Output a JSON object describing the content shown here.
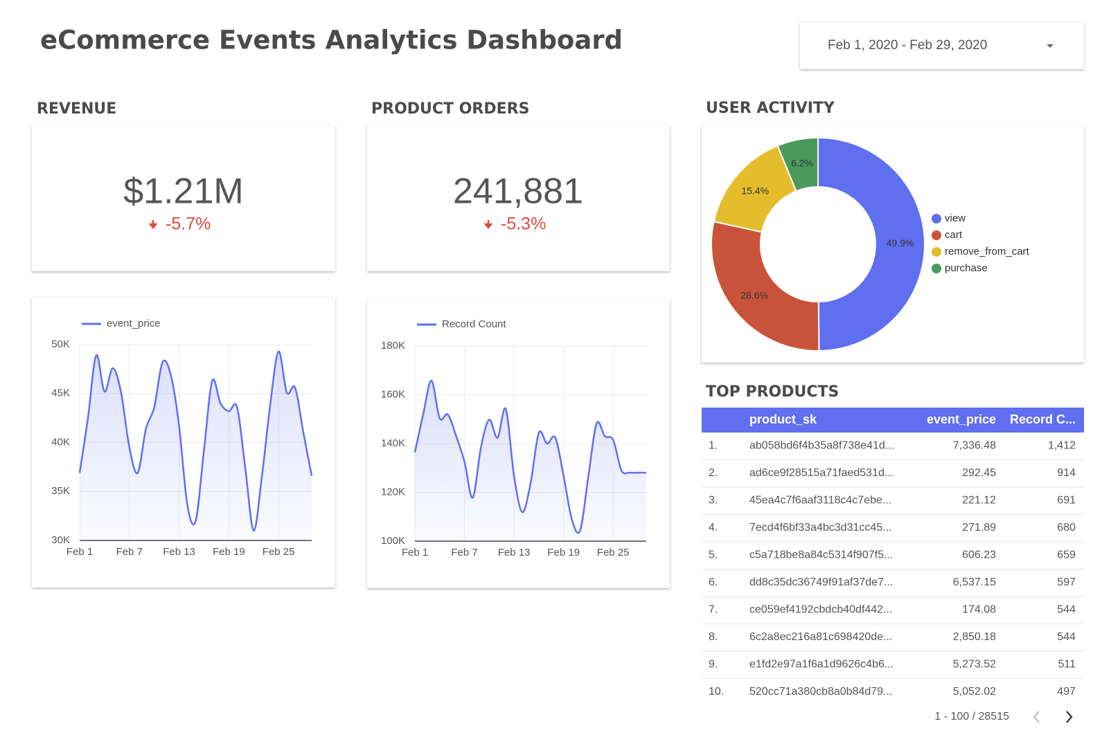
{
  "header": {
    "title": "eCommerce Events Analytics Dashboard",
    "date_range": "Feb 1, 2020 - Feb 29, 2020"
  },
  "scorecards": [
    {
      "title": "REVENUE",
      "value": "$1.21M",
      "change": "-5.7%"
    },
    {
      "title": "PRODUCT ORDERS",
      "value": "241,881",
      "change": "-5.3%"
    }
  ],
  "chart_data": [
    {
      "type": "line",
      "categories": [
        "Feb 1",
        null,
        null,
        null,
        null,
        null,
        "Feb 7",
        null,
        null,
        null,
        null,
        null,
        "Feb 13",
        null,
        null,
        null,
        null,
        null,
        "Feb 19",
        null,
        null,
        null,
        null,
        null,
        "Feb 25",
        null,
        null,
        null,
        null
      ],
      "series": [
        {
          "name": "event_price",
          "color": "#5f6ff0",
          "values": [
            36900,
            42500,
            48900,
            45200,
            47600,
            45100,
            39500,
            36900,
            41400,
            43600,
            48200,
            46900,
            41700,
            33600,
            32000,
            39200,
            46300,
            44000,
            43200,
            43600,
            37300,
            31000,
            36600,
            43900,
            49300,
            45100,
            45600,
            41000,
            36600
          ]
        }
      ],
      "ylim": [
        30000,
        50000
      ],
      "yticks": [
        {
          "value": 30000,
          "label": "30K"
        },
        {
          "value": 35000,
          "label": "35K"
        },
        {
          "value": 40000,
          "label": "40K"
        },
        {
          "value": 45000,
          "label": "45K"
        },
        {
          "value": 50000,
          "label": "50K"
        }
      ],
      "grid": true
    },
    {
      "type": "line",
      "categories": [
        "Feb 1",
        null,
        null,
        null,
        null,
        null,
        "Feb 7",
        null,
        null,
        null,
        null,
        null,
        "Feb 13",
        null,
        null,
        null,
        null,
        null,
        "Feb 19",
        null,
        null,
        null,
        null,
        null,
        "Feb 25",
        null,
        null,
        null,
        null
      ],
      "series": [
        {
          "name": "Record Count",
          "color": "#5f6ff0",
          "values": [
            136400,
            151900,
            165800,
            150400,
            151900,
            143000,
            132600,
            117800,
            138500,
            149800,
            142400,
            154200,
            126700,
            111900,
            123700,
            144400,
            140000,
            142400,
            126700,
            108900,
            104400,
            126700,
            148300,
            143000,
            141500,
            129000,
            128100,
            128100,
            128100
          ]
        }
      ],
      "ylim": [
        100000,
        180000
      ],
      "yticks": [
        {
          "value": 100000,
          "label": "100K"
        },
        {
          "value": 120000,
          "label": "120K"
        },
        {
          "value": 140000,
          "label": "140K"
        },
        {
          "value": 160000,
          "label": "160K"
        },
        {
          "value": 180000,
          "label": "180K"
        }
      ],
      "grid": true
    },
    {
      "type": "pie",
      "title": "USER ACTIVITY",
      "donut": true,
      "legend": "right",
      "categories": [
        "view",
        "cart",
        "remove_from_cart",
        "purchase"
      ],
      "values": [
        49.9,
        28.6,
        15.4,
        6.2
      ],
      "value_labels": [
        "49.9%",
        "28.6%",
        "15.4%",
        "6.2%"
      ],
      "colors": [
        "#5f6ff0",
        "#c9533a",
        "#e3bd2c",
        "#4a9a5a"
      ]
    }
  ],
  "top_products": {
    "title": "TOP PRODUCTS",
    "columns": [
      "product_sk",
      "event_price",
      "Record C..."
    ],
    "rows": [
      [
        "1.",
        "ab058bd6f4b35a8f738e41d...",
        "7,336.48",
        "1,412"
      ],
      [
        "2.",
        "ad6ce9f28515a71faed531d...",
        "292.45",
        "914"
      ],
      [
        "3.",
        "45ea4c7f6aaf3118c4c7ebe...",
        "221.12",
        "691"
      ],
      [
        "4.",
        "7ecd4f6bf33a4bc3d31cc45...",
        "271.89",
        "680"
      ],
      [
        "5.",
        "c5a718be8a84c5314f907f5...",
        "606.23",
        "659"
      ],
      [
        "6.",
        "dd8c35dc36749f91af37de7...",
        "6,537.15",
        "597"
      ],
      [
        "7.",
        "ce059ef4192cbdcb40df442...",
        "174.08",
        "544"
      ],
      [
        "8.",
        "6c2a8ec216a81c698420de...",
        "2,850.18",
        "544"
      ],
      [
        "9.",
        "e1fd2e97a1f6a1d9626c4b6...",
        "5,273.52",
        "511"
      ],
      [
        "10.",
        "520cc71a380cb8a0b84d79...",
        "5,052.02",
        "497"
      ]
    ],
    "pagination": "1 - 100 / 28515"
  }
}
